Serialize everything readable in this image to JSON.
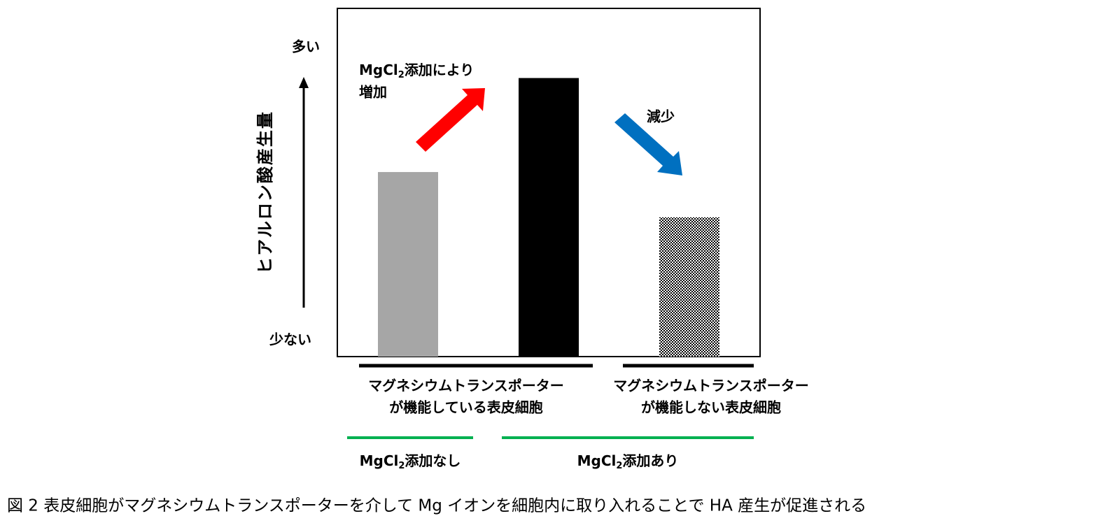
{
  "chart_data": {
    "type": "bar",
    "y_axis_label": "ヒアルロン酸産生量",
    "y_high_label": "多い",
    "y_low_label": "少ない",
    "categories": [
      null,
      null,
      null
    ],
    "values": [
      53,
      80,
      40
    ],
    "colors": [
      "#a6a6a6",
      "#000000",
      "#000000"
    ],
    "fills": [
      "solid",
      "solid",
      "dotted"
    ],
    "ylim": [
      0,
      100
    ],
    "increase_label": {
      "pre": "MgCl",
      "sub": "2",
      "post": "添加により",
      "line2": "増加",
      "color": "#ff0000"
    },
    "decrease_label": {
      "text": "減少",
      "color": "#0070c0"
    },
    "cell_groups": [
      [
        "マグネシウムトランスポーター",
        "が機能している表皮細胞"
      ],
      [
        "マグネシウムトランスポーター",
        "が機能しない表皮細胞"
      ]
    ],
    "treatment_groups": [
      {
        "pre": "MgCl",
        "sub": "2",
        "post": "添加なし"
      },
      {
        "pre": "MgCl",
        "sub": "2",
        "post": "添加あり"
      }
    ],
    "treatment_color": "#00b050",
    "caption": "図 2  表皮細胞がマグネシウムトランスポーターを介して Mg イオンを細胞内に取り入れることで HA 産生が促進される"
  }
}
